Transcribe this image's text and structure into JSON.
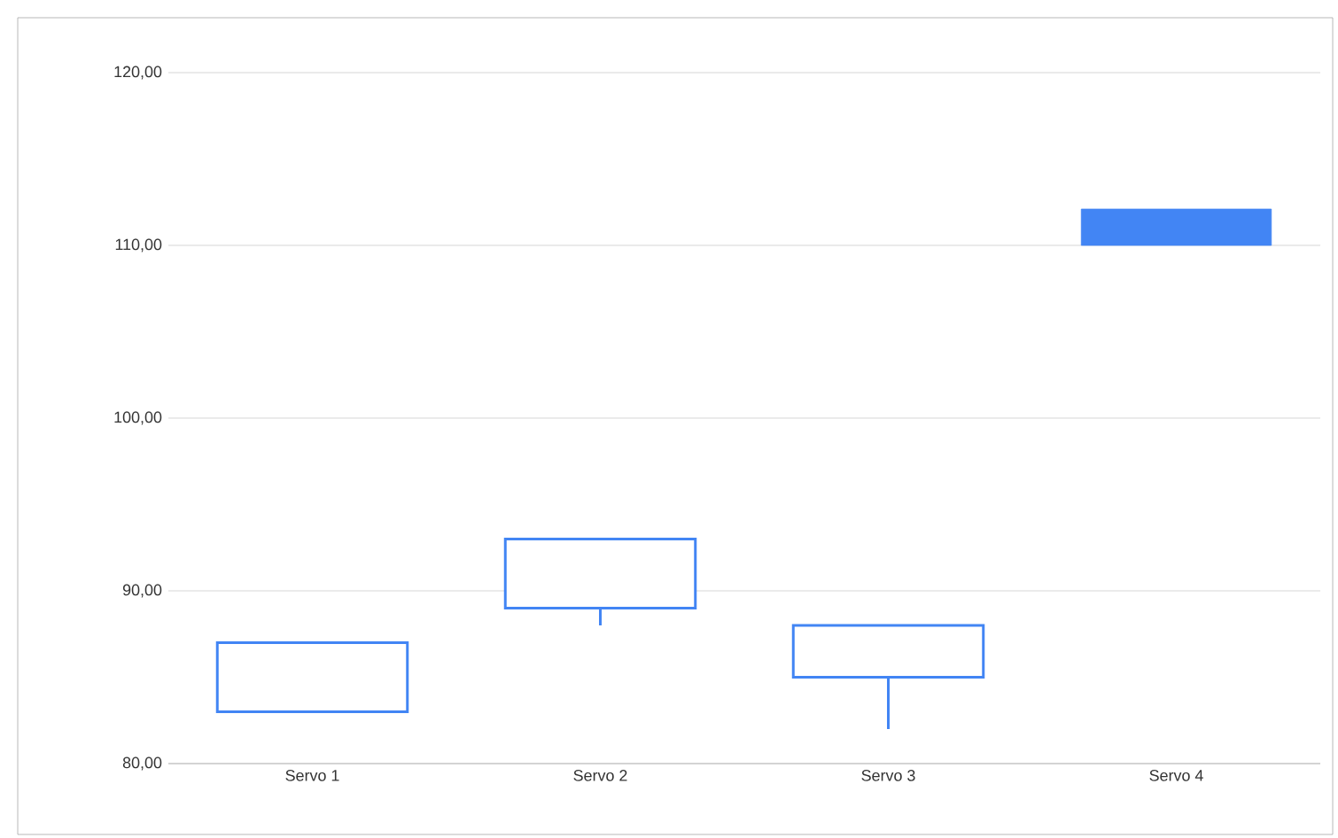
{
  "chart_data": {
    "type": "candlestick",
    "categories": [
      "Servo 1",
      "Servo 2",
      "Servo 3",
      "Servo 4"
    ],
    "ohlc": [
      [
        83,
        87,
        83,
        87
      ],
      [
        89,
        93,
        88,
        93
      ],
      [
        85,
        88,
        82,
        88
      ],
      [
        112.1,
        112.1,
        110,
        110
      ]
    ],
    "color": "#4285f4",
    "ylim": [
      80,
      120
    ],
    "yticks": [
      {
        "value": 80,
        "label": "80,00"
      },
      {
        "value": 90,
        "label": "90,00"
      },
      {
        "value": 100,
        "label": "100,00"
      },
      {
        "value": 110,
        "label": "110,00"
      },
      {
        "value": 120,
        "label": "120,00"
      }
    ],
    "grid": "y"
  }
}
